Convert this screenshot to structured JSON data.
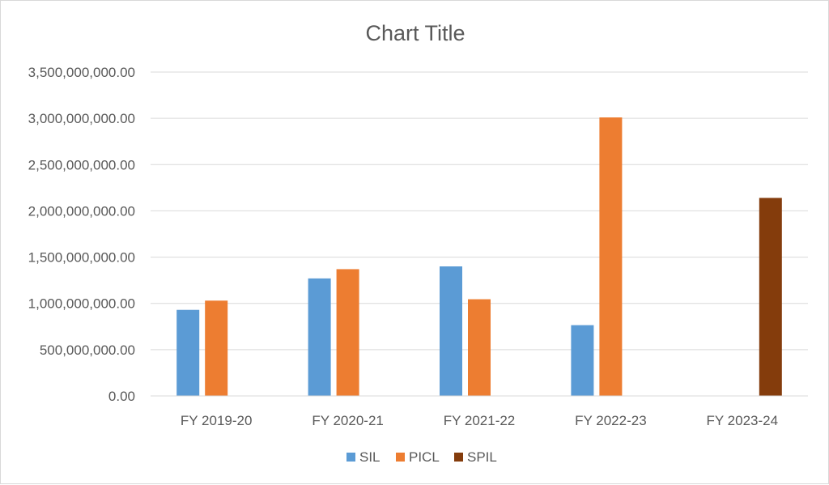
{
  "chart_data": {
    "type": "bar",
    "title": "Chart Title",
    "xlabel": "",
    "ylabel": "",
    "categories": [
      "FY 2019-20",
      "FY 2020-21",
      "FY 2021-22",
      "FY 2022-23",
      "FY 2023-24"
    ],
    "ylim": [
      0,
      3500000000
    ],
    "yticks": [
      0,
      500000000,
      1000000000,
      1500000000,
      2000000000,
      2500000000,
      3000000000,
      3500000000
    ],
    "ytick_labels": [
      "0.00",
      "500,000,000.00",
      "1,000,000,000.00",
      "1,500,000,000.00",
      "2,000,000,000.00",
      "2,500,000,000.00",
      "3,000,000,000.00",
      "3,500,000,000.00"
    ],
    "grid": true,
    "legend_position": "bottom",
    "series": [
      {
        "name": "SIL",
        "color": "#5b9bd5",
        "values": [
          930000000,
          1270000000,
          1400000000,
          765000000,
          null
        ]
      },
      {
        "name": "PICL",
        "color": "#ed7d31",
        "values": [
          1030000000,
          1370000000,
          1045000000,
          3010000000,
          null
        ]
      },
      {
        "name": "SPIL",
        "color": "#843c0c",
        "values": [
          null,
          null,
          null,
          null,
          2140000000
        ]
      }
    ]
  }
}
